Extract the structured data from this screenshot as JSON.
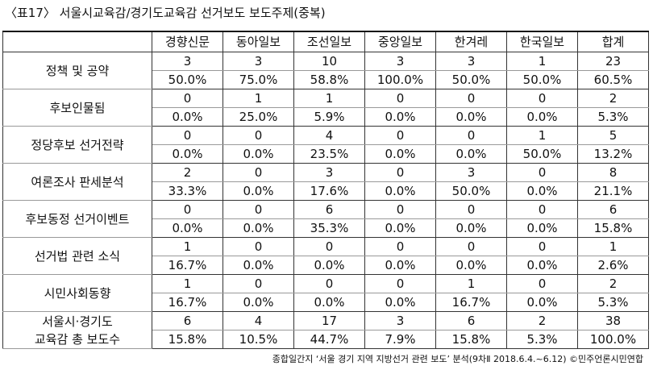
{
  "title": "〈표17〉 서울시교육감/경기도교육감 선거보도 보도주제(중복)",
  "table": {
    "header": [
      "경향신문",
      "동아일보",
      "조선일보",
      "중앙일보",
      "한겨레",
      "한국일보",
      "합계"
    ],
    "rows": [
      {
        "label": [
          "정책 및 공약"
        ],
        "counts": [
          "3",
          "3",
          "10",
          "3",
          "3",
          "1",
          "23"
        ],
        "percents": [
          "50.0%",
          "75.0%",
          "58.8%",
          "100.0%",
          "50.0%",
          "50.0%",
          "60.5%"
        ]
      },
      {
        "label": [
          "후보인물됨"
        ],
        "counts": [
          "0",
          "1",
          "1",
          "0",
          "0",
          "0",
          "2"
        ],
        "percents": [
          "0.0%",
          "25.0%",
          "5.9%",
          "0.0%",
          "0.0%",
          "0.0%",
          "5.3%"
        ]
      },
      {
        "label": [
          "정당후보 선거전략"
        ],
        "counts": [
          "0",
          "0",
          "4",
          "0",
          "0",
          "1",
          "5"
        ],
        "percents": [
          "0.0%",
          "0.0%",
          "23.5%",
          "0.0%",
          "0.0%",
          "50.0%",
          "13.2%"
        ]
      },
      {
        "label": [
          "여론조사 판세분석"
        ],
        "counts": [
          "2",
          "0",
          "3",
          "0",
          "3",
          "0",
          "8"
        ],
        "percents": [
          "33.3%",
          "0.0%",
          "17.6%",
          "0.0%",
          "50.0%",
          "0.0%",
          "21.1%"
        ]
      },
      {
        "label": [
          "후보동정 선거이벤트"
        ],
        "counts": [
          "0",
          "0",
          "6",
          "0",
          "0",
          "0",
          "6"
        ],
        "percents": [
          "0.0%",
          "0.0%",
          "35.3%",
          "0.0%",
          "0.0%",
          "0.0%",
          "15.8%"
        ]
      },
      {
        "label": [
          "선거법 관련 소식"
        ],
        "counts": [
          "1",
          "0",
          "0",
          "0",
          "0",
          "0",
          "1"
        ],
        "percents": [
          "16.7%",
          "0.0%",
          "0.0%",
          "0.0%",
          "0.0%",
          "0.0%",
          "2.6%"
        ]
      },
      {
        "label": [
          "시민사회동향"
        ],
        "counts": [
          "1",
          "0",
          "0",
          "0",
          "1",
          "0",
          "2"
        ],
        "percents": [
          "16.7%",
          "0.0%",
          "0.0%",
          "0.0%",
          "16.7%",
          "0.0%",
          "5.3%"
        ]
      },
      {
        "label": [
          "서울시·경기도",
          "교육감 총 보도수"
        ],
        "counts": [
          "6",
          "4",
          "17",
          "3",
          "6",
          "2",
          "38"
        ],
        "percents": [
          "15.8%",
          "10.5%",
          "44.7%",
          "7.9%",
          "15.8%",
          "5.3%",
          "100.0%"
        ]
      }
    ]
  },
  "footer": "종합일간지 ‘서울 경기 지역 지방선거 관련 보도’ 분석(9차Ⅱ 2018.6.4.~6.12) ©민주언론시민연합"
}
